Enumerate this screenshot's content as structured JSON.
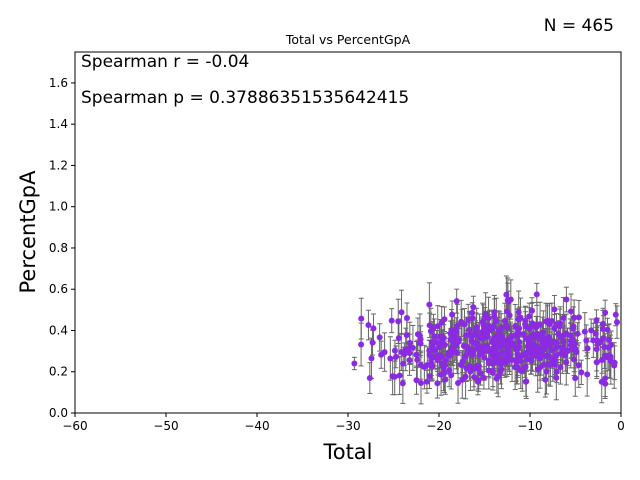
{
  "chart_data": {
    "type": "scatter",
    "title": "Total vs PercentGpA",
    "xlabel": "Total",
    "ylabel": "PercentGpA",
    "xlim": [
      -60,
      0
    ],
    "ylim": [
      0,
      1.75
    ],
    "x_ticks": [
      -60,
      -50,
      -40,
      -30,
      -20,
      -10,
      0
    ],
    "x_tick_labels": [
      "−60",
      "−50",
      "−40",
      "−30",
      "−20",
      "−10",
      "0"
    ],
    "y_ticks": [
      0.0,
      0.2,
      0.4,
      0.6,
      0.8,
      1.0,
      1.2,
      1.4,
      1.6
    ],
    "y_tick_labels": [
      "0.0",
      "0.2",
      "0.4",
      "0.6",
      "0.8",
      "1.0",
      "1.2",
      "1.4",
      "1.6"
    ],
    "annotations": [
      "Spearman r = -0.04",
      "Spearman p = 0.37886351535642415"
    ],
    "count_label": "N = 465",
    "grid": false,
    "marker_color": "#8a2be2",
    "errorbar_color": "#666666",
    "n_points": 465,
    "x_range_of_points": [
      -29.5,
      0
    ],
    "y_center_of_points": 0.33,
    "errorbar_halfwidth_typical": 0.08
  }
}
